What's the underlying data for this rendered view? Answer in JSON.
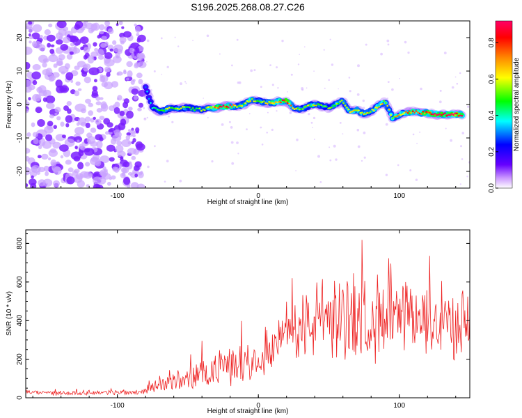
{
  "title": "S196.2025.268.08.27.C26",
  "chart_data": [
    {
      "type": "heatmap",
      "title": "S196.2025.268.08.27.C26",
      "xlabel": "Height of straight line (km)",
      "ylabel": "Frequency (Hz)",
      "xlim": [
        -165,
        150
      ],
      "ylim": [
        -25,
        25
      ],
      "xticks": [
        -100,
        0,
        100
      ],
      "yticks": [
        -20,
        -10,
        0,
        10,
        20
      ],
      "noise_region_end_x": -82,
      "ridge": {
        "name": "spectral ridge",
        "x": [
          -80,
          -75,
          -70,
          -65,
          -60,
          -55,
          -50,
          -45,
          -40,
          -35,
          -30,
          -25,
          -20,
          -15,
          -10,
          -5,
          0,
          5,
          10,
          15,
          20,
          25,
          30,
          35,
          40,
          45,
          50,
          55,
          60,
          65,
          70,
          75,
          80,
          85,
          90,
          95,
          100,
          105,
          110,
          115,
          120,
          125,
          130,
          135,
          140,
          145
        ],
        "y": [
          5,
          -1,
          -2,
          -1.5,
          -1,
          -1,
          -1,
          -1.5,
          -1.5,
          -1,
          -1,
          -0.5,
          -0.5,
          -0.5,
          0,
          1.5,
          1,
          0.5,
          0.5,
          1,
          1,
          -1,
          -1.5,
          -0.5,
          0,
          -0.5,
          -1,
          0,
          1,
          -2,
          -1.5,
          -3,
          -2,
          -0.5,
          1,
          -4,
          -3,
          -2.5,
          -2,
          -2.5,
          -2.5,
          -3,
          -3,
          -3,
          -3,
          -3
        ],
        "amplitude": [
          0.3,
          0.4,
          0.5,
          0.55,
          0.5,
          0.55,
          0.5,
          0.5,
          0.55,
          0.6,
          0.75,
          0.85,
          0.8,
          0.6,
          0.55,
          0.65,
          0.5,
          0.6,
          0.7,
          0.75,
          0.85,
          0.6,
          0.5,
          0.55,
          0.6,
          0.5,
          0.5,
          0.55,
          0.55,
          0.6,
          0.6,
          0.6,
          0.55,
          0.6,
          0.6,
          0.6,
          0.65,
          0.7,
          0.8,
          0.75,
          0.85,
          0.9,
          0.85,
          0.9,
          0.9,
          0.9
        ]
      },
      "colorbar": {
        "label": "Normalized spectral amplitude",
        "range": [
          0,
          0.92
        ],
        "ticks": [
          "0.0",
          "0.2",
          "0.4",
          "0.6",
          "0.8"
        ],
        "tick_values": [
          0,
          0.2,
          0.4,
          0.6,
          0.8
        ],
        "colors": [
          "#ffffff",
          "#cc99ff",
          "#6600ff",
          "#0000ff",
          "#00ffff",
          "#00ff00",
          "#ffff00",
          "#ff8800",
          "#ff0000",
          "#ff0066"
        ]
      }
    },
    {
      "type": "line",
      "xlabel": "Height of straight line (km)",
      "ylabel": "SNR (10 * v/v)",
      "xlim": [
        -165,
        150
      ],
      "ylim": [
        0,
        870
      ],
      "xticks": [
        -100,
        0,
        100
      ],
      "yticks": [
        0,
        200,
        400,
        600,
        800
      ],
      "series": [
        {
          "name": "SNR",
          "color": "#ee2222",
          "x": [
            -165,
            -150,
            -130,
            -110,
            -90,
            -80,
            -75,
            -70,
            -65,
            -60,
            -55,
            -50,
            -45,
            -40,
            -35,
            -30,
            -25,
            -20,
            -15,
            -10,
            -5,
            0,
            5,
            10,
            15,
            20,
            25,
            30,
            35,
            40,
            45,
            50,
            55,
            60,
            65,
            70,
            75,
            80,
            85,
            90,
            95,
            100,
            105,
            110,
            115,
            120,
            125,
            130,
            135,
            140,
            145,
            150
          ],
          "y": [
            30,
            25,
            25,
            28,
            28,
            35,
            60,
            75,
            70,
            80,
            85,
            95,
            110,
            120,
            135,
            145,
            160,
            175,
            180,
            190,
            200,
            190,
            240,
            270,
            290,
            320,
            330,
            360,
            380,
            400,
            410,
            420,
            410,
            420,
            430,
            400,
            420,
            410,
            420,
            400,
            410,
            400,
            400,
            410,
            390,
            400,
            395,
            390,
            390,
            380,
            390,
            390
          ],
          "spread": [
            10,
            10,
            10,
            10,
            12,
            15,
            30,
            35,
            35,
            40,
            45,
            50,
            60,
            70,
            75,
            75,
            80,
            85,
            90,
            90,
            95,
            70,
            90,
            100,
            110,
            120,
            140,
            150,
            160,
            170,
            175,
            180,
            185,
            190,
            190,
            185,
            185,
            180,
            180,
            175,
            175,
            175,
            170,
            170,
            165,
            160,
            160,
            155,
            150,
            150,
            145,
            140
          ]
        }
      ]
    }
  ]
}
